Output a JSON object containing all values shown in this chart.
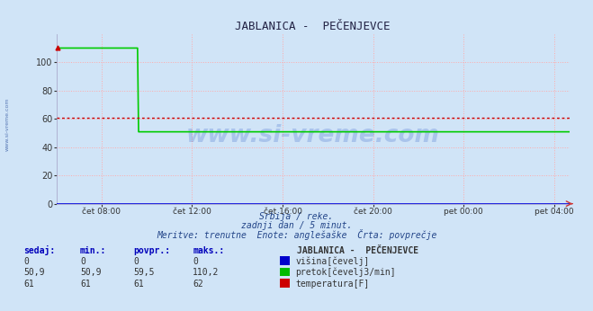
{
  "title": "JABLANICA -  PEČENJEVCE",
  "bg_color": "#d0e4f7",
  "grid_color": "#ffaaaa",
  "xmin": 6.0,
  "xmax": 28.67,
  "ymin": 0,
  "ymax": 120,
  "yticks": [
    0,
    20,
    40,
    60,
    80,
    100
  ],
  "xtick_positions": [
    8,
    12,
    16,
    20,
    24,
    28
  ],
  "xtick_labels": [
    "čet 08:00",
    "čet 12:00",
    "čet 16:00",
    "čet 20:00",
    "pet 00:00",
    "pet 04:00"
  ],
  "green_high": 110.2,
  "green_drop_x": 9.6,
  "green_low": 50.9,
  "red_val": 61.0,
  "blue_val": 0.0,
  "line_blue": "#0000dd",
  "line_green": "#00cc00",
  "line_red": "#cc0000",
  "watermark": "www.si-vreme.com",
  "watermark_color": "#1144bb",
  "sidebar": "www.si-vreme.com",
  "subtitle1": "Srbija / reke.",
  "subtitle2": "zadnji dan / 5 minut.",
  "subtitle3": "Meritve: trenutne  Enote: anglešaške  Črta: povprečje",
  "legend_title": "JABLANICA -  PEČENJEVCE",
  "legend_colors": [
    "#0000cc",
    "#00bb00",
    "#cc0000"
  ],
  "legend_labels": [
    "višina[čevelj]",
    "pretok[čevelj3/min]",
    "temperatura[F]"
  ],
  "table_headers": [
    "sedaj:",
    "min.:",
    "povpr.:",
    "maks.:"
  ],
  "table_data": [
    [
      "0",
      "0",
      "0",
      "0"
    ],
    [
      "50,9",
      "50,9",
      "59,5",
      "110,2"
    ],
    [
      "61",
      "61",
      "61",
      "62"
    ]
  ]
}
